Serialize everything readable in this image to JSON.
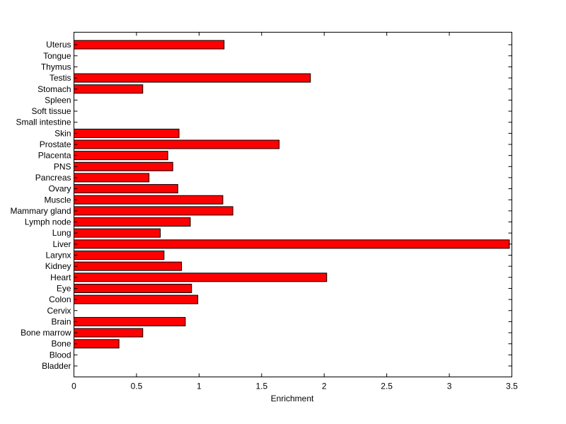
{
  "chart_data": {
    "type": "bar",
    "orientation": "horizontal",
    "title": "",
    "xlabel": "Enrichment",
    "ylabel": "",
    "xlim": [
      0,
      3.5
    ],
    "x_ticks": [
      "0",
      "0.5",
      "1",
      "1.5",
      "2",
      "2.5",
      "3",
      "3.5"
    ],
    "grid": false,
    "bar_color": "#ff0000",
    "bar_edge_color": "#000000",
    "categories": [
      "Bladder",
      "Blood",
      "Bone",
      "Bone marrow",
      "Brain",
      "Cervix",
      "Colon",
      "Eye",
      "Heart",
      "Kidney",
      "Larynx",
      "Liver",
      "Lung",
      "Lymph node",
      "Mammary gland",
      "Muscle",
      "Ovary",
      "Pancreas",
      "PNS",
      "Placenta",
      "Prostate",
      "Skin",
      "Small intestine",
      "Soft tissue",
      "Spleen",
      "Stomach",
      "Testis",
      "Thymus",
      "Tongue",
      "Uterus"
    ],
    "values": [
      0,
      0,
      0.36,
      0.55,
      0.89,
      0,
      0.99,
      0.94,
      2.02,
      0.86,
      0.72,
      3.48,
      0.69,
      0.93,
      1.27,
      1.19,
      0.83,
      0.6,
      0.79,
      0.75,
      1.64,
      0.84,
      0,
      0,
      0,
      0.55,
      1.89,
      0,
      0,
      1.2
    ]
  }
}
